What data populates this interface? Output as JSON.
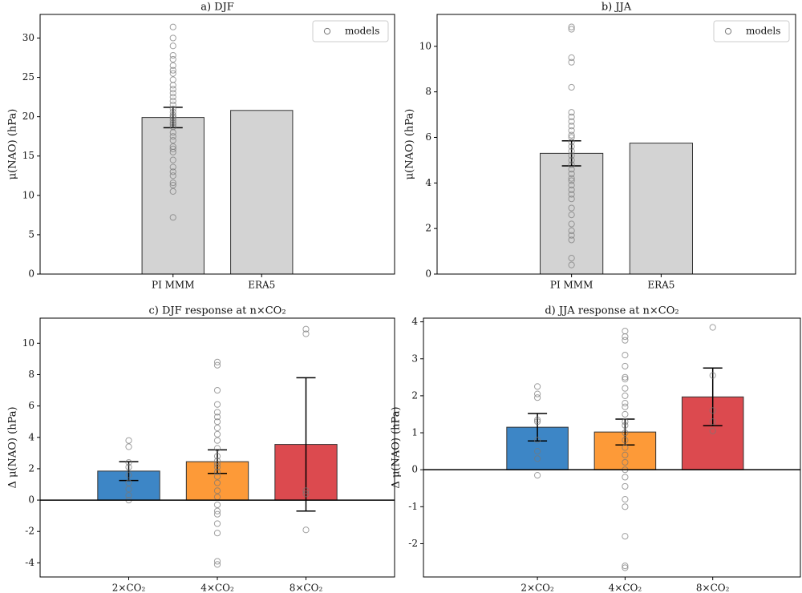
{
  "chart_data": [
    {
      "type": "bar",
      "title": "a) DJF",
      "ylabel": "μ(NAO) (hPa)",
      "categories": [
        "PI MMM",
        "ERA5"
      ],
      "values": [
        19.9,
        20.8
      ],
      "errors": [
        1.3,
        null
      ],
      "colors": [
        "#d3d3d3",
        "#d3d3d3"
      ],
      "models": {
        "name": "models",
        "values": [
          [
            31.4,
            30,
            29,
            27.8,
            27.3,
            26.5,
            25.9,
            25.5,
            24.7,
            24,
            23.5,
            23,
            22.5,
            22,
            21.5,
            21,
            20.6,
            20.2,
            20,
            19.8,
            19.5,
            19.2,
            19,
            18.7,
            18,
            17.5,
            17,
            16.2,
            15.9,
            15.5,
            14.5,
            13.6,
            13,
            12.5,
            11.6,
            11.3,
            10.5,
            7.2
          ],
          []
        ]
      },
      "xlim": [
        -1.5,
        2.5
      ],
      "ylim": [
        0,
        33
      ],
      "yticks": [
        0,
        5,
        10,
        15,
        20,
        25,
        30
      ],
      "legend": "upper right"
    },
    {
      "type": "bar",
      "title": "b) JJA",
      "ylabel": "μ(NAO) (hPa)",
      "categories": [
        "PI MMM",
        "ERA5"
      ],
      "values": [
        5.3,
        5.75
      ],
      "errors": [
        0.55,
        null
      ],
      "colors": [
        "#d3d3d3",
        "#d3d3d3"
      ],
      "models": {
        "name": "models",
        "values": [
          [
            10.85,
            10.75,
            9.5,
            9.3,
            8.2,
            7.1,
            6.9,
            6.7,
            6.5,
            6.3,
            6.1,
            6.0,
            5.8,
            5.6,
            5.4,
            5.2,
            5.0,
            4.8,
            4.6,
            4.4,
            4.2,
            4.1,
            3.9,
            3.7,
            3.5,
            3.3,
            2.9,
            2.6,
            2.2,
            1.9,
            1.7,
            1.5,
            0.7,
            0.4
          ],
          []
        ]
      },
      "xlim": [
        -1.5,
        2.5
      ],
      "ylim": [
        0,
        11.4
      ],
      "yticks": [
        0,
        2,
        4,
        6,
        8,
        10
      ],
      "legend": "upper right"
    },
    {
      "type": "bar",
      "title": "c) DJF response at n×CO₂",
      "ylabel": "Δ μ(NAO) (hPa)",
      "categories": [
        "2×CO₂",
        "4×CO₂",
        "8×CO₂"
      ],
      "values": [
        1.85,
        2.45,
        3.55
      ],
      "errors": [
        0.6,
        0.75,
        4.25
      ],
      "colors": [
        "#3d86c6",
        "#fd9a38",
        "#dc4a4f"
      ],
      "models": {
        "values": [
          [
            3.8,
            3.4,
            2.4,
            2.1,
            1.6,
            1.1,
            0.7,
            0.3,
            0.0
          ],
          [
            8.8,
            8.6,
            7.0,
            6.1,
            5.6,
            5.3,
            5.0,
            4.6,
            4.2,
            3.8,
            3.3,
            2.8,
            2.5,
            2.3,
            2.1,
            1.8,
            1.5,
            1.1,
            0.6,
            0.2,
            -0.3,
            -0.7,
            -0.9,
            -1.5,
            -2.1,
            -3.9,
            -4.1
          ],
          [
            10.9,
            10.6,
            0.6,
            0.4,
            -1.9
          ]
        ]
      },
      "xlim": [
        -1,
        3
      ],
      "ylim": [
        -4.9,
        11.6
      ],
      "yticks": [
        -4,
        -2,
        0,
        2,
        4,
        6,
        8,
        10
      ],
      "zero_line": true
    },
    {
      "type": "bar",
      "title": "d) JJA response at n×CO₂",
      "ylabel": "Δ μ(NAO) (hPa)",
      "categories": [
        "2×CO₂",
        "4×CO₂",
        "8×CO₂"
      ],
      "values": [
        1.15,
        1.02,
        1.97
      ],
      "errors": [
        0.37,
        0.35,
        0.78
      ],
      "colors": [
        "#3d86c6",
        "#fd9a38",
        "#dc4a4f"
      ],
      "models": {
        "values": [
          [
            2.25,
            2.05,
            1.95,
            1.35,
            1.3,
            0.8,
            0.5,
            0.3,
            -0.15
          ],
          [
            3.75,
            3.6,
            3.5,
            3.1,
            2.8,
            2.5,
            2.45,
            2.2,
            2.0,
            1.8,
            1.7,
            1.5,
            1.3,
            1.2,
            1.0,
            0.8,
            0.6,
            0.4,
            0.2,
            0.0,
            -0.2,
            -0.45,
            -0.8,
            -1.0,
            -1.8,
            -2.6,
            -2.65
          ],
          [
            3.85,
            2.55,
            1.6,
            1.3,
            1.05
          ]
        ]
      },
      "xlim": [
        -1.3,
        3
      ],
      "ylim": [
        -2.9,
        4.1
      ],
      "yticks": [
        -2,
        -1,
        0,
        1,
        2,
        3,
        4
      ],
      "zero_line": true
    }
  ]
}
